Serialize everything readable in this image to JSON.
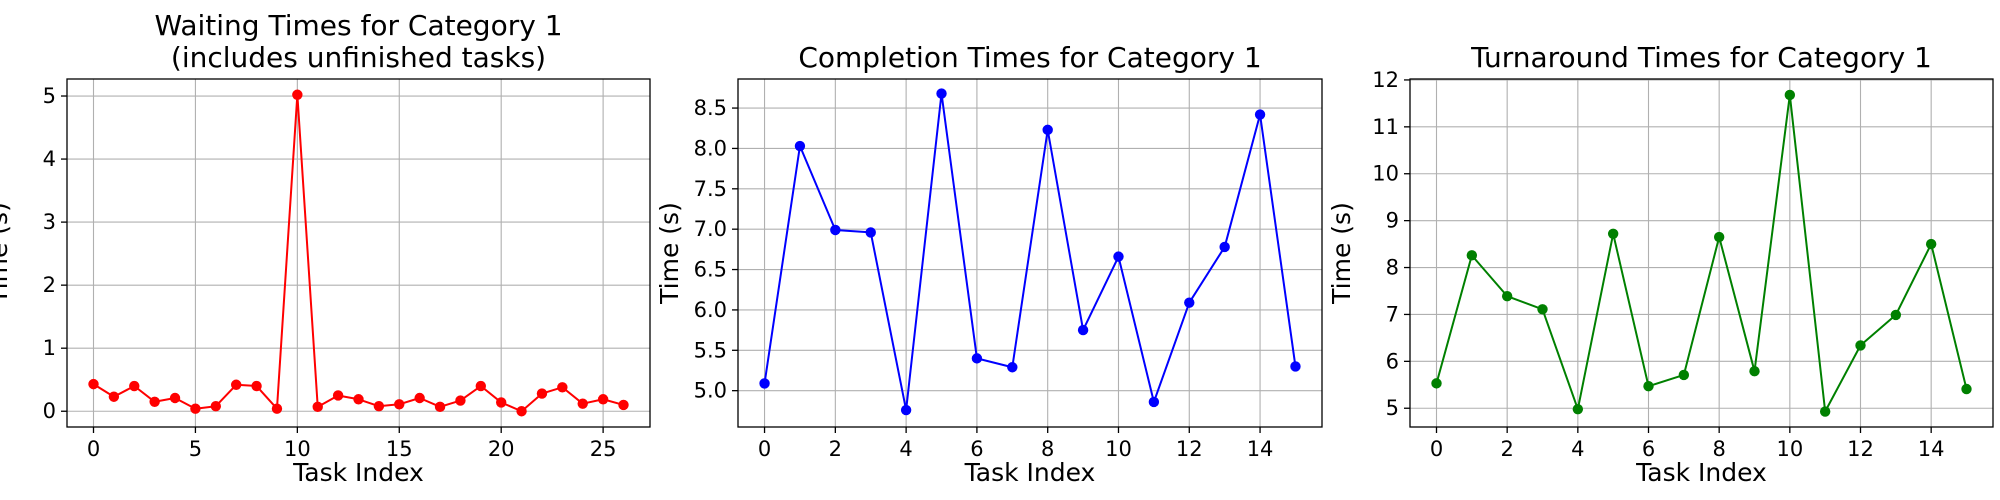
{
  "chart_data": [
    {
      "type": "line",
      "title": [
        "Waiting Times for Category 1",
        "(includes unfinished tasks)"
      ],
      "xlabel": "Task Index",
      "ylabel": "Time (s)",
      "color": "#ff0000",
      "grid": true,
      "xlim": [
        -1.3,
        27.3
      ],
      "ylim": [
        -0.25,
        5.27
      ],
      "xticks": [
        0,
        5,
        10,
        15,
        20,
        25
      ],
      "yticks": [
        0,
        1,
        2,
        3,
        4,
        5
      ],
      "x": [
        0,
        1,
        2,
        3,
        4,
        5,
        6,
        7,
        8,
        9,
        10,
        11,
        12,
        13,
        14,
        15,
        16,
        17,
        18,
        19,
        20,
        21,
        22,
        23,
        24,
        25,
        26
      ],
      "y": [
        0.43,
        0.23,
        0.4,
        0.15,
        0.21,
        0.04,
        0.08,
        0.42,
        0.4,
        0.04,
        5.02,
        0.07,
        0.25,
        0.19,
        0.08,
        0.11,
        0.21,
        0.07,
        0.17,
        0.4,
        0.14,
        0.0,
        0.28,
        0.38,
        0.12,
        0.19,
        0.1
      ]
    },
    {
      "type": "line",
      "title": [
        "Completion Times for Category 1"
      ],
      "xlabel": "Task Index",
      "ylabel": "Time (s)",
      "color": "#0000ff",
      "grid": true,
      "xlim": [
        -0.75,
        15.75
      ],
      "ylim": [
        4.55,
        8.86
      ],
      "xticks": [
        0,
        2,
        4,
        6,
        8,
        10,
        12,
        14
      ],
      "yticks": [
        5.0,
        5.5,
        6.0,
        6.5,
        7.0,
        7.5,
        8.0,
        8.5
      ],
      "ytick_labels": [
        "5.0",
        "5.5",
        "6.0",
        "6.5",
        "7.0",
        "7.5",
        "8.0",
        "8.5"
      ],
      "x": [
        0,
        1,
        2,
        3,
        4,
        5,
        6,
        7,
        8,
        9,
        10,
        11,
        12,
        13,
        14,
        15
      ],
      "y": [
        5.09,
        8.03,
        6.99,
        6.96,
        4.76,
        8.68,
        5.4,
        5.29,
        8.23,
        5.75,
        6.66,
        4.86,
        6.09,
        6.78,
        8.42,
        5.3
      ]
    },
    {
      "type": "line",
      "title": [
        "Turnaround Times for Category 1"
      ],
      "xlabel": "Task Index",
      "ylabel": "Time (s)",
      "color": "#008000",
      "grid": true,
      "xlim": [
        -0.75,
        15.75
      ],
      "ylim": [
        4.6,
        12.02
      ],
      "xticks": [
        0,
        2,
        4,
        6,
        8,
        10,
        12,
        14
      ],
      "yticks": [
        5,
        6,
        7,
        8,
        9,
        10,
        11,
        12
      ],
      "x": [
        0,
        1,
        2,
        3,
        4,
        5,
        6,
        7,
        8,
        9,
        10,
        11,
        12,
        13,
        14,
        15
      ],
      "y": [
        5.53,
        8.26,
        7.39,
        7.11,
        4.98,
        8.72,
        5.47,
        5.71,
        8.65,
        5.79,
        11.68,
        4.93,
        6.34,
        6.99,
        8.5,
        5.41
      ]
    }
  ]
}
